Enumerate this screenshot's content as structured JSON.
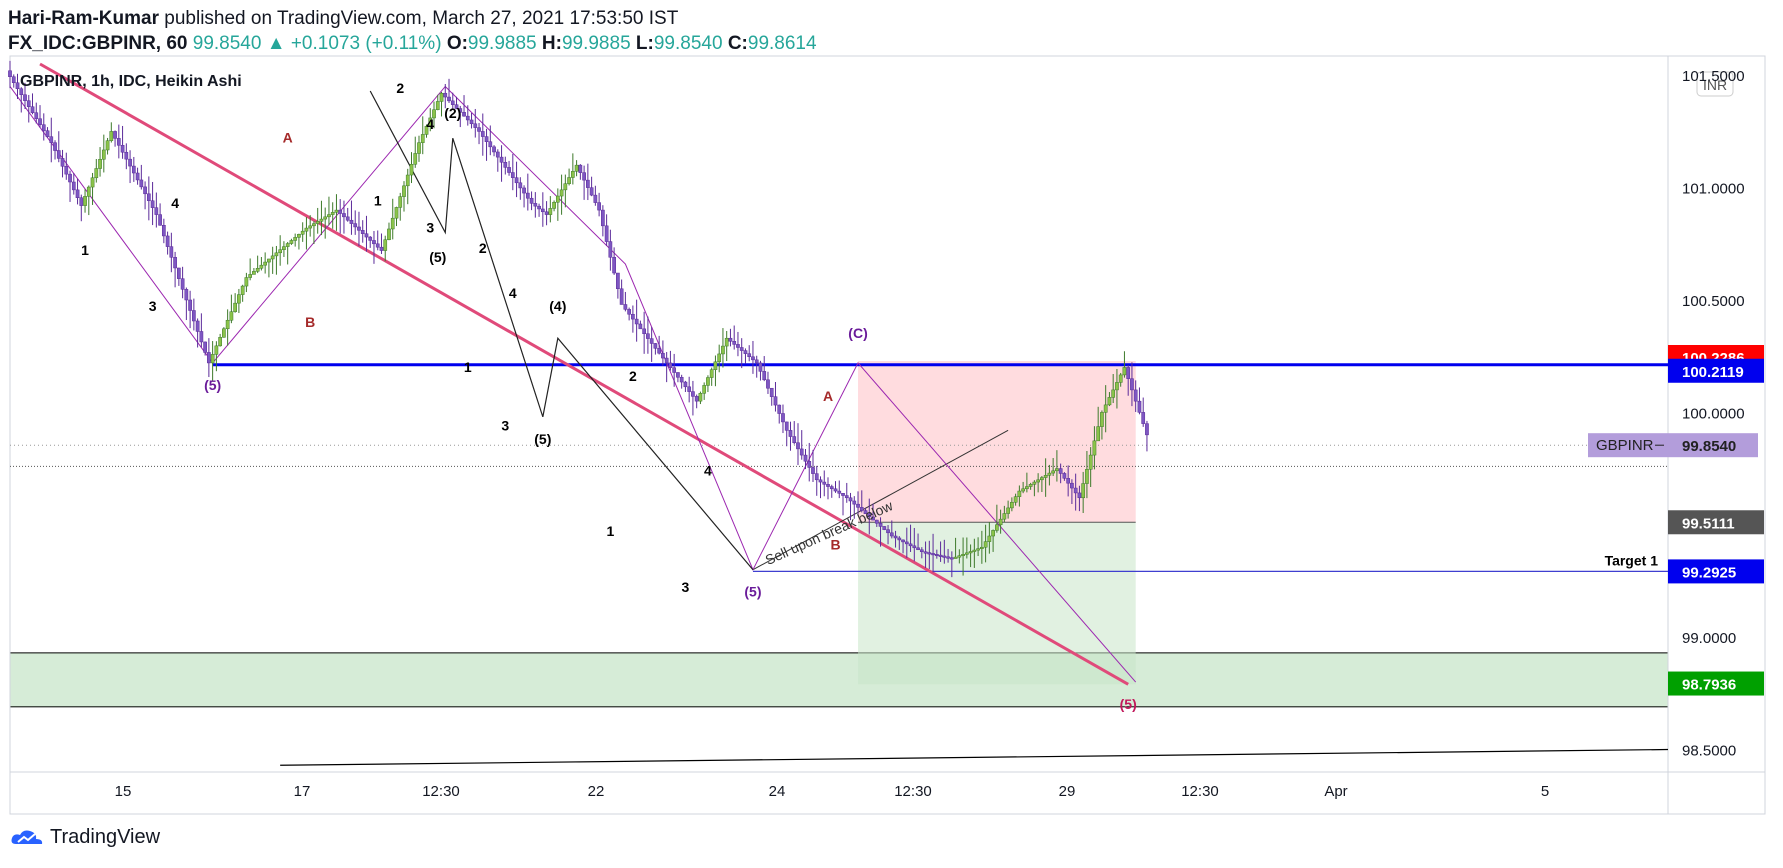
{
  "header": {
    "author": "Hari-Ram-Kumar",
    "published_text": "published on TradingView.com, March 27, 2021 17:53:50 IST",
    "symbol_line": "FX_IDC:GBPINR, 60",
    "last": "99.8540",
    "change": "+0.1073 (+0.11%)",
    "open_label": "O:",
    "open": "99.9885",
    "high_label": "H:",
    "high": "99.9885",
    "low_label": "L:",
    "low": "99.8540",
    "close_label": "C:",
    "close": "99.8614"
  },
  "footer": {
    "brand": "TradingView",
    "logo_icon": "tradingview-cloud-icon"
  },
  "chart_data": {
    "type": "candlestick",
    "title": "GBPINR, 1h, IDC, Heikin Ashi",
    "currency": "INR",
    "ylim": [
      98.4,
      101.55
    ],
    "y_ticks": [
      "101.5000",
      "101.0000",
      "100.5000",
      "100.0000",
      "99.0000",
      "98.5000"
    ],
    "x_ticks": [
      "15",
      "17",
      "12:30",
      "22",
      "24",
      "12:30",
      "29",
      "12:30",
      "Apr",
      "5"
    ],
    "price_labels": [
      {
        "value": "100.2286",
        "color": "#ff0000"
      },
      {
        "value": "100.2119",
        "color": "#0000ee"
      },
      {
        "value": "99.8540",
        "symbol": "GBPINR",
        "color": "#b39ddb"
      },
      {
        "value": "99.5111",
        "color": "#555555"
      },
      {
        "value": "99.2925",
        "color": "#0000ee"
      },
      {
        "value": "98.7936",
        "color": "#00a000"
      }
    ],
    "levels": [
      {
        "name": "resistance",
        "y": 100.2119
      },
      {
        "name": "target-1",
        "y": 99.2925,
        "label": "Target 1"
      },
      {
        "name": "demand-zone",
        "y_top": 98.93,
        "y_bottom": 98.69
      }
    ],
    "price_path": [
      [
        0,
        101.52
      ],
      [
        6,
        101.2
      ],
      [
        10,
        100.92
      ],
      [
        14,
        101.25
      ],
      [
        20,
        100.88
      ],
      [
        24,
        100.5
      ],
      [
        27,
        100.22
      ],
      [
        32,
        100.6
      ],
      [
        40,
        100.82
      ],
      [
        44,
        100.9
      ],
      [
        50,
        100.72
      ],
      [
        55,
        101.2
      ],
      [
        58,
        101.42
      ],
      [
        63,
        101.25
      ],
      [
        70,
        100.93
      ],
      [
        72,
        100.88
      ],
      [
        76,
        101.1
      ],
      [
        79,
        100.9
      ],
      [
        82,
        100.48
      ],
      [
        88,
        100.22
      ],
      [
        92,
        100.05
      ],
      [
        96,
        100.33
      ],
      [
        100,
        100.22
      ],
      [
        104,
        99.92
      ],
      [
        108,
        99.7
      ],
      [
        112,
        99.62
      ],
      [
        118,
        99.45
      ],
      [
        122,
        99.38
      ],
      [
        126,
        99.35
      ],
      [
        130,
        99.4
      ],
      [
        135,
        99.65
      ],
      [
        140,
        99.75
      ],
      [
        143,
        99.62
      ],
      [
        146,
        100.0
      ],
      [
        149,
        100.2
      ],
      [
        152,
        99.9
      ]
    ],
    "wave_labels": [
      {
        "text": "1",
        "x": 10,
        "y": 100.7,
        "color": "#000000"
      },
      {
        "text": "4",
        "x": 22,
        "y": 100.91,
        "color": "#000000"
      },
      {
        "text": "3",
        "x": 19,
        "y": 100.45,
        "color": "#000000"
      },
      {
        "text": "(5)",
        "x": 27,
        "y": 100.1,
        "color": "#6a1b9a"
      },
      {
        "text": "A",
        "x": 37,
        "y": 101.2,
        "color": "#a52a2a"
      },
      {
        "text": "B",
        "x": 40,
        "y": 100.38,
        "color": "#a52a2a"
      },
      {
        "text": "2",
        "x": 52,
        "y": 101.42,
        "color": "#000000"
      },
      {
        "text": "1",
        "x": 49,
        "y": 100.92,
        "color": "#000000"
      },
      {
        "text": "4",
        "x": 56,
        "y": 101.26,
        "color": "#000000"
      },
      {
        "text": "(2)",
        "x": 59,
        "y": 101.31,
        "color": "#000000"
      },
      {
        "text": "3",
        "x": 56,
        "y": 100.8,
        "color": "#000000"
      },
      {
        "text": "(5)",
        "x": 57,
        "y": 100.67,
        "color": "#000000"
      },
      {
        "text": "2",
        "x": 63,
        "y": 100.71,
        "color": "#000000"
      },
      {
        "text": "4",
        "x": 67,
        "y": 100.51,
        "color": "#000000"
      },
      {
        "text": "(4)",
        "x": 73,
        "y": 100.45,
        "color": "#000000"
      },
      {
        "text": "1",
        "x": 61,
        "y": 100.18,
        "color": "#000000"
      },
      {
        "text": "3",
        "x": 66,
        "y": 99.92,
        "color": "#000000"
      },
      {
        "text": "(5)",
        "x": 71,
        "y": 99.86,
        "color": "#000000"
      },
      {
        "text": "2",
        "x": 83,
        "y": 100.14,
        "color": "#000000"
      },
      {
        "text": "4",
        "x": 93,
        "y": 99.72,
        "color": "#000000"
      },
      {
        "text": "1",
        "x": 80,
        "y": 99.45,
        "color": "#000000"
      },
      {
        "text": "3",
        "x": 90,
        "y": 99.2,
        "color": "#000000"
      },
      {
        "text": "(5)",
        "x": 99,
        "y": 99.18,
        "color": "#6a1b9a"
      },
      {
        "text": "A",
        "x": 109,
        "y": 100.05,
        "color": "#a52a2a"
      },
      {
        "text": "B",
        "x": 110,
        "y": 99.39,
        "color": "#a52a2a"
      },
      {
        "text": "(C)",
        "x": 113,
        "y": 100.33,
        "color": "#6a1b9a"
      },
      {
        "text": "(5)",
        "x": 149,
        "y": 98.68,
        "color": "#c2185b"
      }
    ],
    "annotations": [
      {
        "name": "sell-note",
        "text": "Sell upon break below"
      }
    ]
  }
}
